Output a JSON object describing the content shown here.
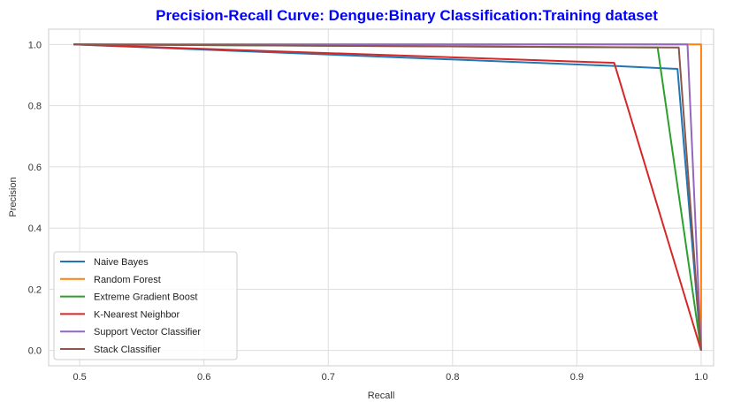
{
  "chart_data": {
    "type": "line",
    "title": "Precision-Recall Curve:  Dengue:Binary Classification:Training dataset",
    "title_color": "#0000ff",
    "xlabel": "Recall",
    "ylabel": "Precision",
    "xlim": [
      0.475,
      1.01
    ],
    "ylim": [
      -0.05,
      1.05
    ],
    "xticks": [
      0.5,
      0.6,
      0.7,
      0.8,
      0.9,
      1.0
    ],
    "xtick_labels": [
      "0.5",
      "0.6",
      "0.7",
      "0.8",
      "0.9",
      "1.0"
    ],
    "yticks": [
      0.0,
      0.2,
      0.4,
      0.6,
      0.8,
      1.0
    ],
    "ytick_labels": [
      "0.0",
      "0.2",
      "0.4",
      "0.6",
      "0.8",
      "1.0"
    ],
    "grid": true,
    "legend_position": "lower-left",
    "series": [
      {
        "name": "Naive Bayes",
        "color": "#1f77b4",
        "x": [
          0.495,
          0.93,
          0.981,
          1.0
        ],
        "y": [
          1.0,
          0.93,
          0.92,
          0.0
        ]
      },
      {
        "name": "Random Forest",
        "color": "#ff7f0e",
        "x": [
          0.495,
          0.9995,
          1.0,
          1.0
        ],
        "y": [
          1.0,
          1.0,
          1.0,
          0.0
        ]
      },
      {
        "name": "Extreme Gradient Boost",
        "color": "#2ca02c",
        "x": [
          0.495,
          0.965,
          1.0
        ],
        "y": [
          1.0,
          0.99,
          0.0
        ]
      },
      {
        "name": "K-Nearest Neighbor",
        "color": "#d62728",
        "x": [
          0.495,
          0.93,
          1.0
        ],
        "y": [
          1.0,
          0.94,
          0.0
        ]
      },
      {
        "name": "Support Vector Classifier",
        "color": "#9467bd",
        "x": [
          0.495,
          0.989,
          1.0
        ],
        "y": [
          1.0,
          1.0,
          0.0
        ]
      },
      {
        "name": "Stack Classifier",
        "color": "#8c564b",
        "x": [
          0.495,
          0.982,
          1.0
        ],
        "y": [
          1.0,
          0.99,
          0.0
        ]
      }
    ]
  }
}
